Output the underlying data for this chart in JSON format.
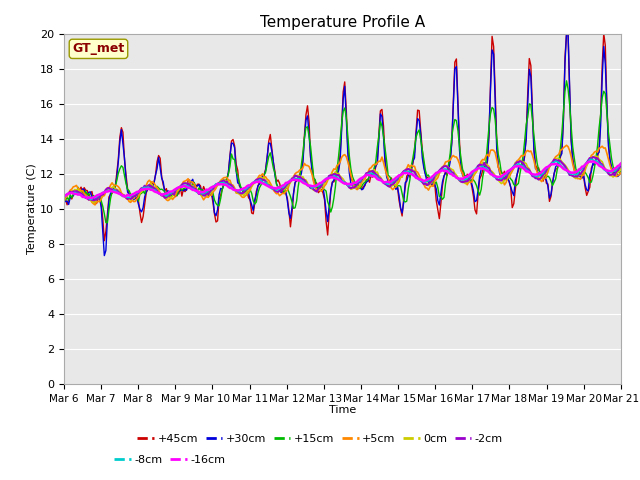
{
  "title": "Temperature Profile A",
  "xlabel": "Time",
  "ylabel": "Temperature (C)",
  "ylim": [
    0,
    20
  ],
  "yticks": [
    0,
    2,
    4,
    6,
    8,
    10,
    12,
    14,
    16,
    18,
    20
  ],
  "x_labels": [
    "Mar 6",
    "Mar 7",
    "Mar 8",
    "Mar 9",
    "Mar 10",
    "Mar 11",
    "Mar 12",
    "Mar 13",
    "Mar 14",
    "Mar 15",
    "Mar 16",
    "Mar 17",
    "Mar 18",
    "Mar 19",
    "Mar 20",
    "Mar 21"
  ],
  "annotation_text": "GT_met",
  "background_color": "#e8e8e8",
  "fig_width": 6.4,
  "fig_height": 4.8,
  "series": [
    {
      "label": "+45cm",
      "color": "#cc0000",
      "lw": 1.0
    },
    {
      "label": "+30cm",
      "color": "#0000dd",
      "lw": 1.0
    },
    {
      "label": "+15cm",
      "color": "#00bb00",
      "lw": 1.0
    },
    {
      "label": "+5cm",
      "color": "#ff8800",
      "lw": 1.2
    },
    {
      "label": "0cm",
      "color": "#cccc00",
      "lw": 1.2
    },
    {
      "label": "-2cm",
      "color": "#9900cc",
      "lw": 1.5
    },
    {
      "label": "-8cm",
      "color": "#00cccc",
      "lw": 1.2
    },
    {
      "label": "-16cm",
      "color": "#ff00ff",
      "lw": 1.8
    }
  ]
}
